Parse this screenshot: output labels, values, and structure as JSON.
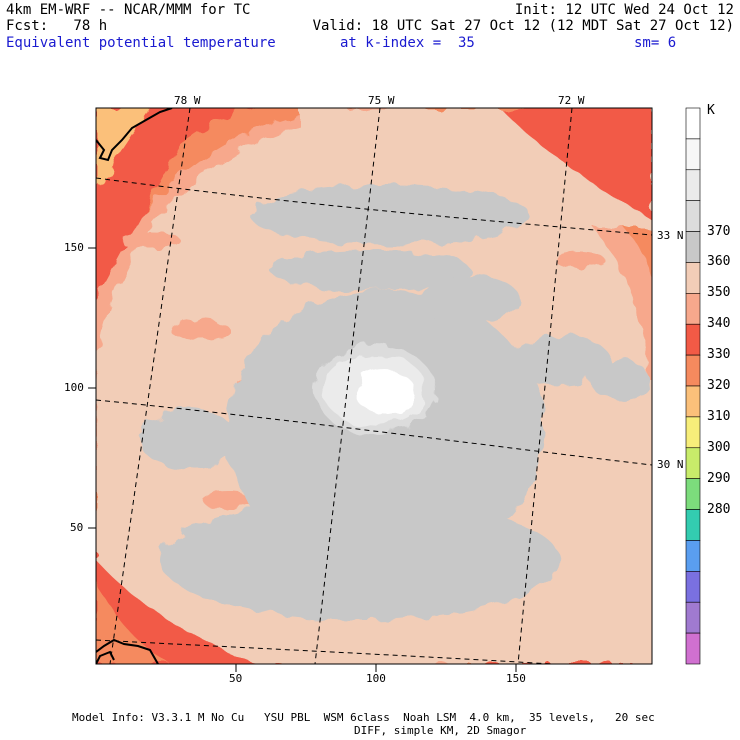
{
  "header": {
    "line1_left": "4km EM-WRF -- NCAR/MMM for TC",
    "line1_right": "Init: 12 UTC Wed 24 Oct 12",
    "line2_left": "Fcst:   78 h",
    "line2_right": "Valid: 18 UTC Sat 27 Oct 12 (12 MDT Sat 27 Oct 12)",
    "line3_left": "Equivalent potential temperature",
    "line3_mid": "at k-index =  35",
    "line3_right": "sm= 6"
  },
  "map": {
    "top_lon_labels": [
      "78 W",
      "75 W",
      "72 W"
    ],
    "right_lat_labels": [
      "33 N",
      "30 N"
    ],
    "left_y_ticks": [
      "150",
      "100",
      "50"
    ],
    "bottom_x_ticks": [
      "50",
      "100",
      "150"
    ]
  },
  "colorbar": {
    "unit": "K",
    "labels": [
      "370",
      "360",
      "350",
      "340",
      "330",
      "320",
      "310",
      "300",
      "290",
      "280"
    ],
    "colors": [
      "#ffffff",
      "#f7f7f7",
      "#ebebeb",
      "#dcdcdc",
      "#c8c8c8",
      "#f2cdb7",
      "#f7a88c",
      "#f25a46",
      "#f58a5e",
      "#fbc07a",
      "#f7ee7a",
      "#c8ec6a",
      "#7cdc7c",
      "#33ccb0",
      "#5a9ef0",
      "#7a70e0",
      "#a07ad0",
      "#d070d0"
    ]
  },
  "footer": {
    "line1": "Model Info: V3.3.1 M No Cu   YSU PBL  WSM 6class  Noah LSM  4.0 km,  35 levels,   20 sec",
    "line2": "DIFF, simple KM, 2D Smagor"
  }
}
